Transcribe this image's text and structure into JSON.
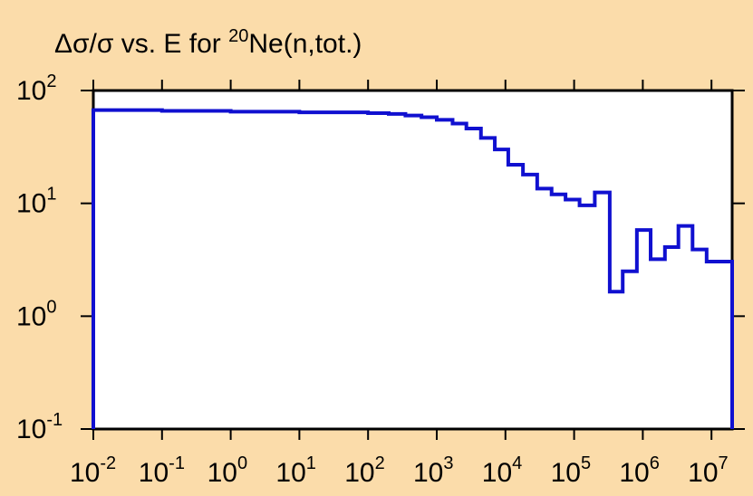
{
  "chart_data": {
    "type": "line",
    "title": "Δσ/σ vs. E for ²⁰Ne(n,tot.)",
    "title_parts": {
      "prefix": "Δσ/σ vs. E for ",
      "superscript": "20",
      "suffix": "Ne(n,tot.)"
    },
    "xlabel": "",
    "ylabel": "",
    "x_scale": "log",
    "y_scale": "log",
    "xlim": [
      0.01,
      20000000
    ],
    "ylim": [
      0.1,
      100
    ],
    "grid": false,
    "line_color": "#1010d0",
    "background_color": "#fbdcaa",
    "plot_color": "#ffffff",
    "x_ticks": [
      {
        "base": "10",
        "exp": "-2",
        "value": 0.01
      },
      {
        "base": "10",
        "exp": "-1",
        "value": 0.1
      },
      {
        "base": "10",
        "exp": "0",
        "value": 1
      },
      {
        "base": "10",
        "exp": "1",
        "value": 10
      },
      {
        "base": "10",
        "exp": "2",
        "value": 100
      },
      {
        "base": "10",
        "exp": "3",
        "value": 1000
      },
      {
        "base": "10",
        "exp": "4",
        "value": 10000
      },
      {
        "base": "10",
        "exp": "5",
        "value": 100000
      },
      {
        "base": "10",
        "exp": "6",
        "value": 1000000
      },
      {
        "base": "10",
        "exp": "7",
        "value": 10000000
      }
    ],
    "y_ticks": [
      {
        "base": "10",
        "exp": "2",
        "value": 100
      },
      {
        "base": "10",
        "exp": "1",
        "value": 10
      },
      {
        "base": "10",
        "exp": "0",
        "value": 1
      },
      {
        "base": "10",
        "exp": "-1",
        "value": 0.1
      }
    ],
    "series": [
      {
        "step": "post",
        "x": [
          0.01,
          0.1,
          1,
          10,
          100,
          200,
          350,
          600,
          1000,
          1700,
          2700,
          4400,
          7000,
          11000,
          18000,
          29000,
          47000,
          75000,
          120000,
          200000,
          330000,
          510000,
          820000,
          1300000,
          2100000,
          3300000,
          5300000,
          8500000,
          20000000
        ],
        "y": [
          67,
          66,
          65,
          64,
          63,
          62,
          60,
          58,
          55,
          51,
          46,
          38,
          30,
          22,
          18,
          13.5,
          12,
          10.8,
          9.6,
          12.5,
          1.65,
          2.5,
          5.8,
          3.2,
          4.1,
          6.3,
          3.9,
          3.05,
          3.05
        ]
      }
    ]
  }
}
